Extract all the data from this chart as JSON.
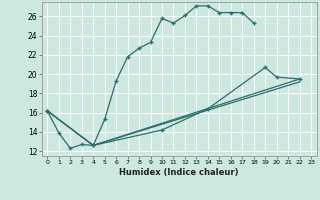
{
  "title": "",
  "xlabel": "Humidex (Indice chaleur)",
  "bg_color": "#cce8df",
  "grid_color": "#ffffff",
  "line_color": "#2d6e6e",
  "xlim": [
    -0.5,
    23.5
  ],
  "ylim": [
    11.5,
    27.5
  ],
  "xticks": [
    0,
    1,
    2,
    3,
    4,
    5,
    6,
    7,
    8,
    9,
    10,
    11,
    12,
    13,
    14,
    15,
    16,
    17,
    18,
    19,
    20,
    21,
    22,
    23
  ],
  "yticks": [
    12,
    14,
    16,
    18,
    20,
    22,
    24,
    26
  ],
  "curve1_x": [
    0,
    1,
    2,
    3,
    4,
    5,
    6,
    7,
    8,
    9,
    10,
    11,
    12,
    13,
    14,
    15,
    16,
    17,
    18
  ],
  "curve1_y": [
    16.2,
    13.9,
    12.3,
    12.7,
    12.6,
    15.3,
    19.3,
    21.8,
    22.7,
    23.3,
    25.8,
    25.3,
    26.1,
    27.1,
    27.1,
    26.4,
    26.4,
    26.4,
    25.3
  ],
  "curve2_x": [
    0,
    4,
    10,
    14,
    19,
    20,
    22
  ],
  "curve2_y": [
    16.2,
    12.6,
    14.2,
    16.4,
    20.7,
    19.7,
    19.5
  ],
  "curve3_x": [
    0,
    4,
    22
  ],
  "curve3_y": [
    16.2,
    12.6,
    19.5
  ],
  "curve4_x": [
    0,
    4,
    22
  ],
  "curve4_y": [
    16.2,
    12.6,
    19.2
  ],
  "figsize": [
    3.2,
    2.0
  ],
  "dpi": 100
}
